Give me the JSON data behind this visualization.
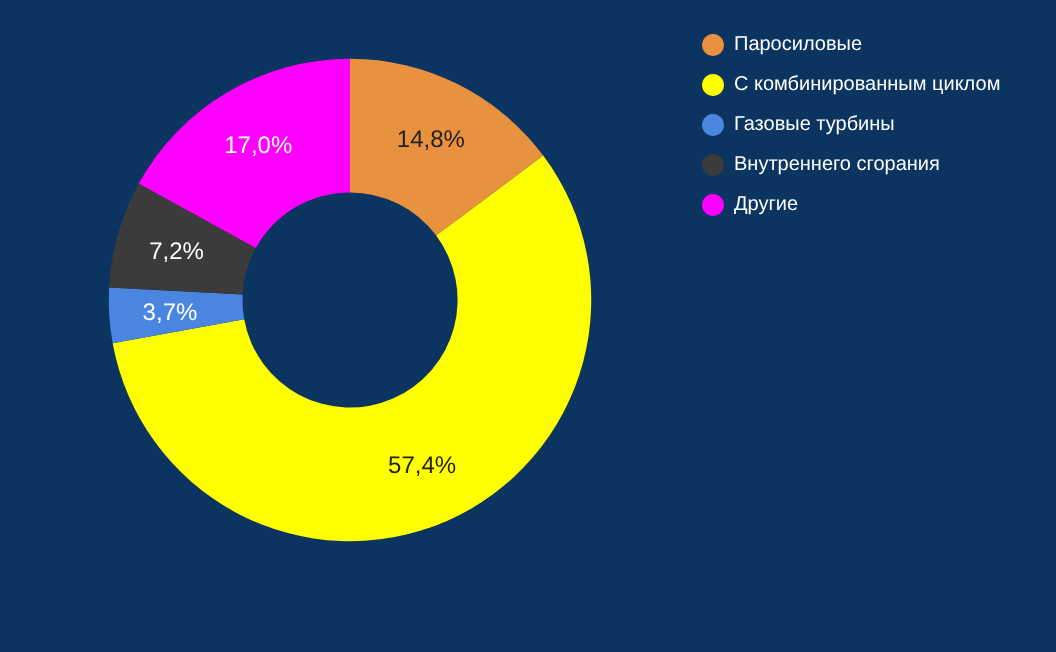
{
  "chart_data": {
    "type": "donut",
    "categories": [
      "Паросиловые",
      "С комбинированным циклом",
      "Газовые турбины",
      "Внутреннего сгорания",
      "Другие"
    ],
    "values": [
      14.8,
      57.4,
      3.7,
      7.2,
      17.0
    ],
    "value_labels": [
      "14,8%",
      "57,4%",
      "3,7%",
      "7,2%",
      "17,0%"
    ],
    "colors": [
      "#e8913f",
      "#ffff00",
      "#4a86e0",
      "#3b3b3b",
      "#ff00ff"
    ],
    "legend": "top right"
  }
}
